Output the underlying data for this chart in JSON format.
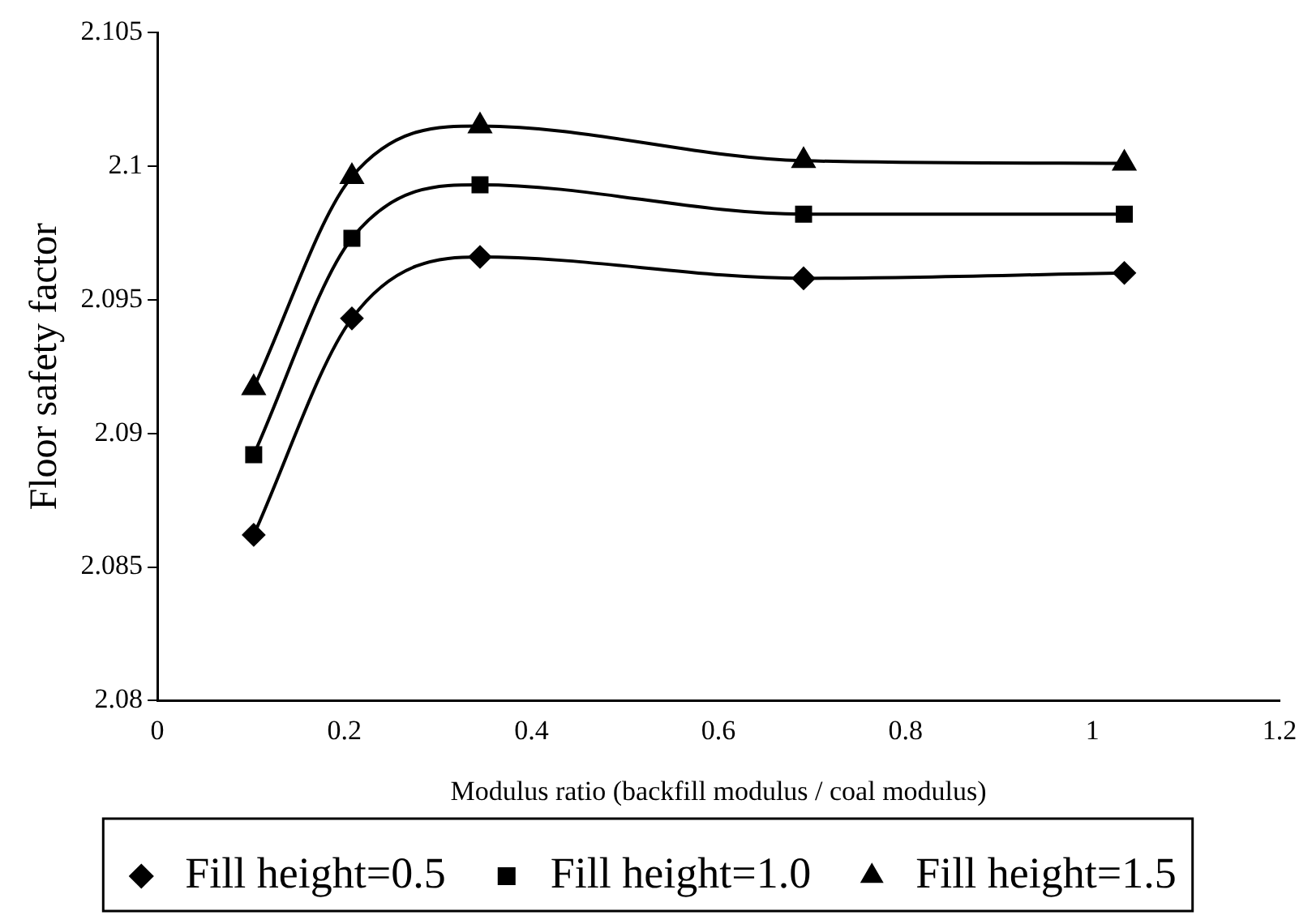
{
  "chart_data": {
    "type": "line",
    "xlabel": "Modulus ratio (backfill modulus / coal modulus)",
    "ylabel": "Floor safety factor",
    "xlim": [
      0,
      1.2
    ],
    "xticks": [
      0,
      0.2,
      0.4,
      0.6,
      0.8,
      1,
      1.2
    ],
    "ylim": [
      2.08,
      2.105
    ],
    "yticks": [
      2.08,
      2.085,
      2.09,
      2.095,
      2.1,
      2.105
    ],
    "grid": false,
    "legend": "bottom",
    "x": [
      0.103,
      0.208,
      0.345,
      0.691,
      1.034
    ],
    "series": [
      {
        "name": "Fill height=0.5",
        "color": "#000000",
        "marker": "diamond",
        "values": [
          2.0862,
          2.0943,
          2.0966,
          2.0958,
          2.096
        ]
      },
      {
        "name": "Fill height=1.0",
        "color": "#000000",
        "marker": "square",
        "values": [
          2.0892,
          2.0973,
          2.0993,
          2.0982,
          2.0982
        ]
      },
      {
        "name": "Fill height=1.5",
        "color": "#000000",
        "marker": "triangle",
        "values": [
          2.0917,
          2.0996,
          2.1015,
          2.1002,
          2.1001
        ]
      }
    ]
  }
}
